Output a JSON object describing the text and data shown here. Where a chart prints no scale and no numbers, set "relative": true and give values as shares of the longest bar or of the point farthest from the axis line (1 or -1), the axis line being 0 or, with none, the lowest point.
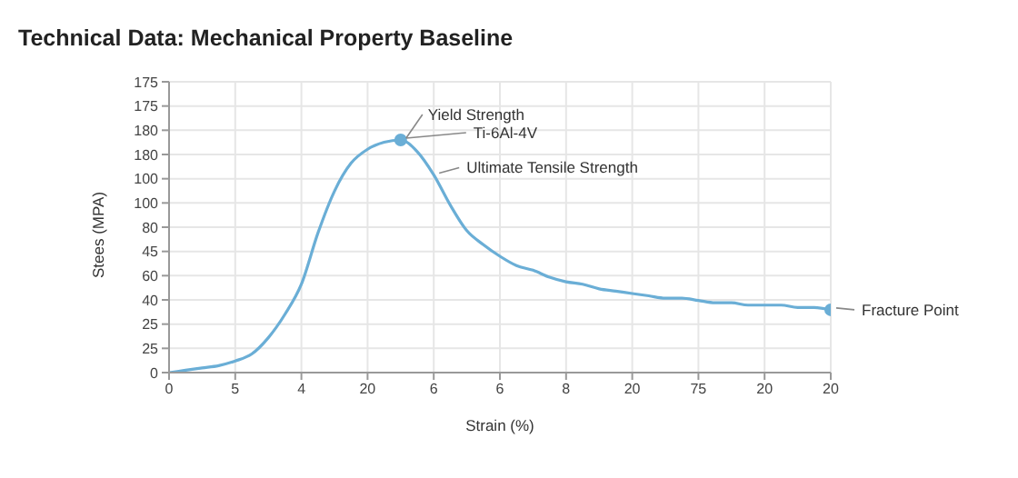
{
  "chart_data": {
    "type": "line",
    "title": "Technical Data: Mechanical Property Baseline",
    "xlabel": "Strain (%)",
    "ylabel": "Stees (MPA)",
    "relative": true,
    "categories": [
      "0",
      null,
      null,
      null,
      "5",
      null,
      null,
      null,
      "4",
      null,
      null,
      null,
      "20",
      null,
      null,
      null,
      "6",
      null,
      null,
      null,
      "6",
      null,
      null,
      null,
      "8",
      null,
      null,
      null,
      "20",
      null,
      null,
      null,
      "75",
      null,
      null,
      null,
      "20",
      null,
      null,
      null,
      "20"
    ],
    "grid": true,
    "series": [
      {
        "type": "line",
        "color": "#6aaed6",
        "marker": "none",
        "values": [
          0,
          0.01,
          0.02,
          0.03,
          0.05,
          0.08,
          0.15,
          0.25,
          0.38,
          0.6,
          0.78,
          0.9,
          0.96,
          0.99,
          1,
          0.95,
          0.85,
          0.72,
          0.61,
          0.55,
          0.5,
          0.46,
          0.44,
          0.41,
          0.39,
          0.38,
          0.36,
          0.35,
          0.34,
          0.33,
          0.32,
          0.32,
          0.31,
          0.3,
          0.3,
          0.29,
          0.29,
          0.29,
          0.28,
          0.28,
          0.27
        ]
      },
      {
        "type": "scatter",
        "color": "#6aaed6",
        "marker": "circle",
        "values": [
          null,
          null,
          null,
          null,
          null,
          null,
          null,
          null,
          null,
          null,
          null,
          null,
          null,
          null,
          1,
          null,
          null,
          null,
          null,
          null,
          null,
          null,
          null,
          null,
          null,
          null,
          null,
          null,
          null,
          null,
          null,
          null,
          null,
          null,
          null,
          null,
          null,
          null,
          null,
          null,
          0.27
        ]
      }
    ],
    "annotations": [
      "Yield Strength",
      "Ti-6Al-4V",
      "Ultimate Tensile Strength",
      "Fracture Point",
      "0",
      "25",
      "25",
      "40",
      "60",
      "45",
      "80",
      "100",
      "100",
      "180",
      "180",
      "175",
      "175"
    ]
  }
}
